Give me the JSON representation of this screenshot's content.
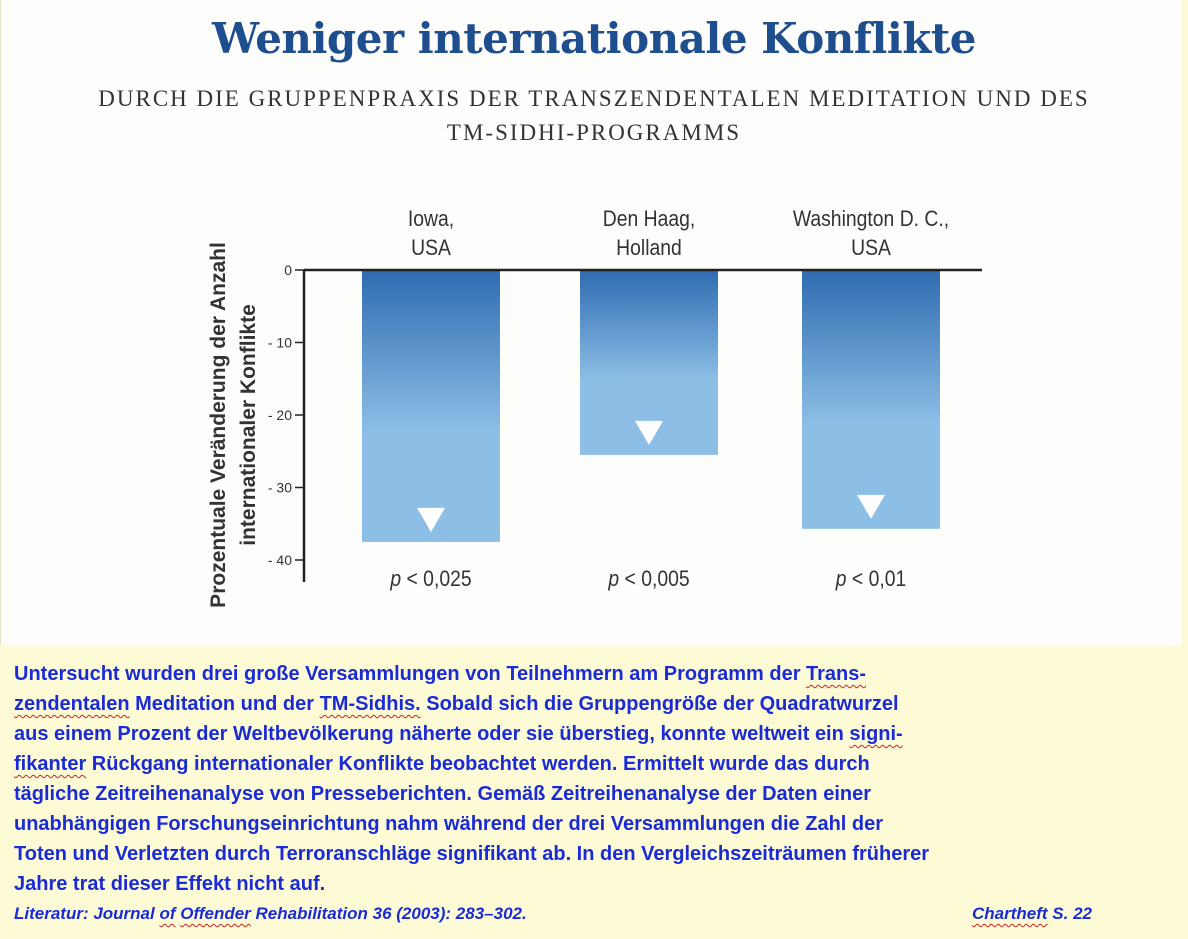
{
  "chart_data": {
    "type": "bar",
    "title": "Weniger internationale Konflikte",
    "subtitle": [
      "DURCH DIE GRUPPENPRAXIS DER TRANSZENDENTALEN MEDITATION UND DES",
      "TM-SIDHI-PROGRAMMS"
    ],
    "ylabel": [
      "Prozentuale Veränderung der Anzahl",
      "internationaler Konflikte"
    ],
    "ylim": [
      -40,
      0
    ],
    "yticks": [
      0,
      -10,
      -20,
      -30,
      -40
    ],
    "ytick_labels": [
      "0",
      "- 10",
      "- 20",
      "- 30",
      "- 40"
    ],
    "categories": [
      {
        "lines": [
          "Iowa,",
          "USA"
        ]
      },
      {
        "lines": [
          "Den Haag,",
          "Holland"
        ]
      },
      {
        "lines": [
          "Washington D. C.,",
          "USA"
        ]
      }
    ],
    "values": [
      -37.5,
      -25.5,
      -35.7
    ],
    "annotations": [
      {
        "p": "p",
        "rest": " < 0,025"
      },
      {
        "p": "p",
        "rest": " < 0,005"
      },
      {
        "p": "p",
        "rest": " < 0,01"
      }
    ],
    "bar_gradient": [
      "#2f6bb0",
      "#8dbfe6"
    ],
    "grid": false,
    "legend": "none"
  },
  "body": {
    "line1": [
      {
        "t": "Untersucht wurden drei große Versammlungen von Teilnehmern am Programm der "
      },
      {
        "t": "Trans-",
        "sq": true
      }
    ],
    "line2": [
      {
        "t": "zendentalen",
        "sq": true
      },
      {
        "t": " Meditation und der "
      },
      {
        "t": "TM-Sidhis.",
        "sq": true
      },
      {
        "t": " Sobald sich die Gruppengröße der Quadratwurzel"
      }
    ],
    "line3": [
      {
        "t": "aus einem Prozent der Weltbevölkerung näherte oder sie überstieg, konnte weltweit ein "
      },
      {
        "t": "signi-",
        "sq": true
      }
    ],
    "line4": [
      {
        "t": "fikanter",
        "sq": true
      },
      {
        "t": " Rückgang internationaler Konflikte beobachtet werden. Ermittelt wurde das durch"
      }
    ],
    "line5": [
      {
        "t": "tägliche Zeitreihenanalyse von Presseberichten. Gemäß Zeitreihenanalyse der Daten einer"
      }
    ],
    "line6": [
      {
        "t": "unabhängigen Forschungseinrichtung nahm während der drei Versammlungen die Zahl der"
      }
    ],
    "line7": [
      {
        "t": "Toten und Verletzten durch Terroranschläge signifikant ab. In den Vergleichszeiträumen früherer"
      }
    ],
    "line8": [
      {
        "t": "Jahre trat dieser Effekt nicht auf."
      }
    ]
  },
  "reference": [
    {
      "t": "Literatur: Journal "
    },
    {
      "t": "of",
      "sq": true
    },
    {
      "t": " "
    },
    {
      "t": "Offender",
      "sq": true
    },
    {
      "t": " Rehabilitation 36 (2003): 283–302."
    }
  ],
  "source": [
    {
      "t": "Chartheft",
      "sq": true
    },
    {
      "t": " S. 22"
    }
  ]
}
